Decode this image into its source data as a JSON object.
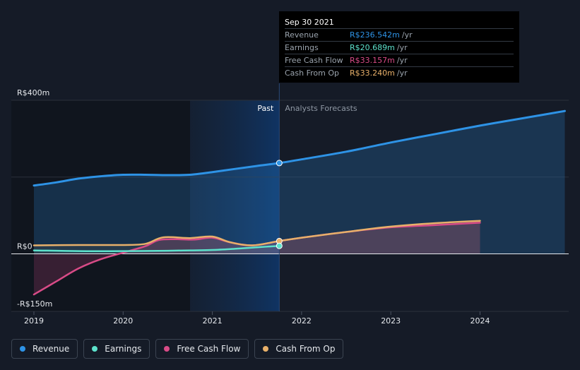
{
  "colors": {
    "revenue": "#2e93e6",
    "earnings": "#5de2cc",
    "free_cash_flow": "#d84b87",
    "cash_from_op": "#e8b06a",
    "background": "#151b27"
  },
  "tooltip": {
    "date": "Sep 30 2021",
    "rows": [
      {
        "label": "Revenue",
        "value": "R$236.542m",
        "unit": "/yr",
        "color": "#2e93e6"
      },
      {
        "label": "Earnings",
        "value": "R$20.689m",
        "unit": "/yr",
        "color": "#5de2cc"
      },
      {
        "label": "Free Cash Flow",
        "value": "R$33.157m",
        "unit": "/yr",
        "color": "#d84b87"
      },
      {
        "label": "Cash From Op",
        "value": "R$33.240m",
        "unit": "/yr",
        "color": "#e8b06a"
      }
    ]
  },
  "legend": [
    {
      "label": "Revenue",
      "color": "#2e93e6"
    },
    {
      "label": "Earnings",
      "color": "#5de2cc"
    },
    {
      "label": "Free Cash Flow",
      "color": "#d84b87"
    },
    {
      "label": "Cash From Op",
      "color": "#e8b06a"
    }
  ],
  "chart_data": {
    "type": "line",
    "past_label": "Past",
    "forecast_label": "Analysts Forecasts",
    "divider_x": 2021.75,
    "highlight_start": 2020.75,
    "ylim": [
      -150,
      400
    ],
    "xlim": [
      2018.9,
      2024.95
    ],
    "y_ticks": [
      {
        "value": 400,
        "label": "R$400m"
      },
      {
        "value": 0,
        "label": "R$0"
      },
      {
        "value": -150,
        "label": "-R$150m"
      }
    ],
    "x_ticks": [
      {
        "value": 2019,
        "label": "2019"
      },
      {
        "value": 2020,
        "label": "2020"
      },
      {
        "value": 2021,
        "label": "2021"
      },
      {
        "value": 2022,
        "label": "2022"
      },
      {
        "value": 2023,
        "label": "2023"
      },
      {
        "value": 2024,
        "label": "2024"
      }
    ],
    "gridlines": [
      400,
      200
    ],
    "series": [
      {
        "key": "revenue",
        "name": "Revenue",
        "color": "#2e93e6",
        "points": [
          [
            2019.0,
            178
          ],
          [
            2019.25,
            186
          ],
          [
            2019.5,
            196
          ],
          [
            2019.75,
            202
          ],
          [
            2020.0,
            206
          ],
          [
            2020.25,
            206
          ],
          [
            2020.5,
            205
          ],
          [
            2020.75,
            206
          ],
          [
            2021.0,
            213
          ],
          [
            2021.25,
            221
          ],
          [
            2021.5,
            229
          ],
          [
            2021.75,
            236.5
          ],
          [
            2022.0,
            246
          ],
          [
            2022.5,
            266
          ],
          [
            2023.0,
            290
          ],
          [
            2023.5,
            312
          ],
          [
            2024.0,
            334
          ],
          [
            2024.5,
            354
          ],
          [
            2024.95,
            372
          ]
        ]
      },
      {
        "key": "earnings",
        "name": "Earnings",
        "color": "#5de2cc",
        "points": [
          [
            2019.0,
            9
          ],
          [
            2019.5,
            7
          ],
          [
            2020.0,
            7
          ],
          [
            2020.5,
            8
          ],
          [
            2020.75,
            9
          ],
          [
            2021.0,
            10
          ],
          [
            2021.25,
            13
          ],
          [
            2021.5,
            17
          ],
          [
            2021.75,
            20.7
          ]
        ]
      },
      {
        "key": "free_cash_flow",
        "name": "Free Cash Flow",
        "color": "#d84b87",
        "points": [
          [
            2019.0,
            -106
          ],
          [
            2019.25,
            -72
          ],
          [
            2019.5,
            -38
          ],
          [
            2019.75,
            -14
          ],
          [
            2020.0,
            3
          ],
          [
            2020.25,
            20
          ],
          [
            2020.4,
            36
          ],
          [
            2020.6,
            38
          ],
          [
            2020.8,
            37
          ],
          [
            2021.0,
            42
          ],
          [
            2021.2,
            30
          ],
          [
            2021.45,
            22
          ],
          [
            2021.75,
            33.2
          ],
          [
            2022.0,
            42
          ],
          [
            2022.5,
            57
          ],
          [
            2023.0,
            69
          ],
          [
            2023.5,
            75
          ],
          [
            2024.0,
            81
          ]
        ]
      },
      {
        "key": "cash_from_op",
        "name": "Cash From Op",
        "color": "#e8b06a",
        "points": [
          [
            2019.0,
            22
          ],
          [
            2019.5,
            23
          ],
          [
            2020.0,
            23
          ],
          [
            2020.25,
            26
          ],
          [
            2020.45,
            43
          ],
          [
            2020.75,
            41
          ],
          [
            2021.0,
            45
          ],
          [
            2021.2,
            30
          ],
          [
            2021.45,
            22
          ],
          [
            2021.75,
            33.2
          ],
          [
            2022.0,
            42
          ],
          [
            2022.5,
            57
          ],
          [
            2023.0,
            71
          ],
          [
            2023.5,
            80
          ],
          [
            2024.0,
            86
          ]
        ]
      }
    ],
    "markers": [
      {
        "series": "revenue",
        "x": 2021.75,
        "y": 236.5
      },
      {
        "series": "cash_from_op",
        "x": 2021.75,
        "y": 33.2
      },
      {
        "series": "earnings",
        "x": 2021.75,
        "y": 20.7
      }
    ]
  }
}
